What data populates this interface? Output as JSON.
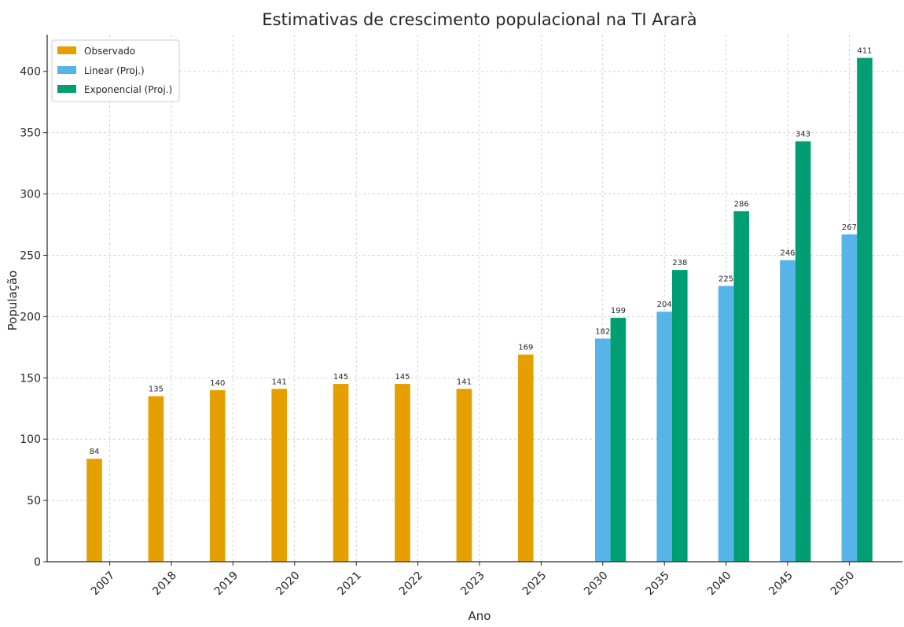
{
  "chart_data": {
    "type": "bar",
    "title": "Estimativas de crescimento populacional na TI Ararà",
    "xlabel": "Ano",
    "ylabel": "População",
    "ylim": [
      0,
      430
    ],
    "yticks": [
      0,
      50,
      100,
      150,
      200,
      250,
      300,
      350,
      400
    ],
    "grid": true,
    "legend_position": "top-left",
    "categories": [
      "2007",
      "2018",
      "2019",
      "2020",
      "2021",
      "2022",
      "2023",
      "2025",
      "2030",
      "2035",
      "2040",
      "2045",
      "2050"
    ],
    "series": [
      {
        "name": "Observado",
        "color": "#E69F00",
        "values": [
          84,
          135,
          140,
          141,
          145,
          145,
          141,
          169,
          null,
          null,
          null,
          null,
          null
        ]
      },
      {
        "name": "Linear (Proj.)",
        "color": "#56B4E9",
        "values": [
          null,
          null,
          null,
          null,
          null,
          null,
          null,
          null,
          182,
          204,
          225,
          246,
          267
        ]
      },
      {
        "name": "Exponencial (Proj.)",
        "color": "#009E73",
        "values": [
          null,
          null,
          null,
          null,
          null,
          null,
          null,
          null,
          199,
          238,
          286,
          343,
          411
        ]
      }
    ]
  }
}
